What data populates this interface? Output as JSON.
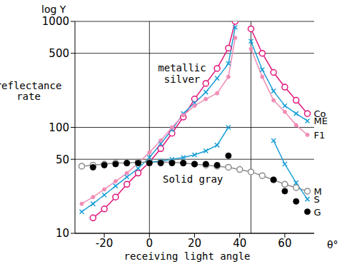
{
  "chart_data": {
    "type": "line",
    "y_label": "reflectance rate",
    "y_axis_title": "log Y",
    "x_label": "receiving light angle",
    "x_unit": "θ°",
    "log": "y",
    "grid": true,
    "xlim": [
      -33,
      73
    ],
    "ylim": [
      10,
      1000
    ],
    "xticks": [
      -20,
      0,
      20,
      40,
      60
    ],
    "yticks": [
      10,
      50,
      100,
      500,
      1000
    ],
    "vlines": [
      0,
      45
    ],
    "annotations": [
      "metallic silver",
      "Solid gray"
    ],
    "series": [
      {
        "name": "Co",
        "color": "#e0157a",
        "marker": "circle-open",
        "line_style": "solid",
        "x": [
          -25,
          -20,
          -15,
          -10,
          -5,
          0,
          5,
          10,
          15,
          20,
          25,
          30,
          35,
          38,
          42,
          45,
          50,
          55,
          60,
          65,
          70
        ],
        "values": [
          14,
          17,
          22,
          29,
          37,
          47,
          63,
          88,
          125,
          185,
          260,
          360,
          560,
          1000,
          null,
          850,
          500,
          330,
          240,
          180,
          135
        ]
      },
      {
        "name": "ME",
        "color": "#1ba0d8",
        "marker": "x",
        "line_style": "solid",
        "x": [
          -30,
          -25,
          -20,
          -15,
          -10,
          -5,
          0,
          5,
          10,
          15,
          20,
          25,
          30,
          35,
          38,
          42,
          45,
          50,
          55,
          60,
          65,
          70
        ],
        "values": [
          16,
          19,
          23,
          28,
          34,
          41,
          52,
          70,
          95,
          135,
          170,
          215,
          290,
          400,
          880,
          null,
          650,
          350,
          220,
          160,
          135,
          115
        ]
      },
      {
        "name": "F1",
        "color": "#f28cb6",
        "marker": "dot",
        "line_style": "solid",
        "x": [
          -30,
          -25,
          -20,
          -15,
          -10,
          -5,
          0,
          5,
          10,
          15,
          20,
          25,
          30,
          35,
          38,
          42,
          45,
          50,
          55,
          60,
          65,
          70
        ],
        "values": [
          19,
          22,
          26,
          31,
          37,
          46,
          58,
          75,
          100,
          130,
          160,
          185,
          210,
          300,
          700,
          null,
          550,
          300,
          180,
          140,
          105,
          85
        ]
      },
      {
        "name": "M",
        "color": "#8c8c8c",
        "marker": "circle-open",
        "line_style": "solid",
        "x": [
          -30,
          -25,
          -20,
          -15,
          -10,
          -5,
          0,
          5,
          10,
          15,
          20,
          25,
          30,
          35,
          40,
          45,
          50,
          55,
          60,
          65,
          70
        ],
        "values": [
          43,
          44,
          45,
          46,
          46,
          47,
          47,
          47,
          47,
          46,
          45,
          44,
          43,
          42,
          40,
          38,
          35,
          32,
          29,
          27,
          25
        ]
      },
      {
        "name": "S",
        "color": "#1ba0d8",
        "marker": "x",
        "line_style": "solid",
        "x": [
          0,
          5,
          10,
          15,
          20,
          25,
          30,
          35,
          45,
          55,
          60,
          65,
          70
        ],
        "values": [
          47,
          48,
          50,
          52,
          55,
          60,
          68,
          100,
          null,
          75,
          45,
          30,
          21
        ]
      },
      {
        "name": "G",
        "color": "#000000",
        "marker": "circle-filled",
        "line_style": "none",
        "x": [
          -25,
          -20,
          -15,
          -10,
          -5,
          0,
          5,
          10,
          15,
          20,
          25,
          30,
          35,
          55,
          60,
          65,
          70
        ],
        "values": [
          42,
          44,
          45,
          46,
          46,
          46,
          46,
          46,
          46,
          45,
          45,
          44,
          54,
          32,
          25,
          20,
          16
        ]
      }
    ]
  }
}
